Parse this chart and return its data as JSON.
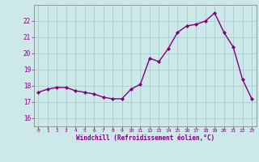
{
  "x": [
    0,
    1,
    2,
    3,
    4,
    5,
    6,
    7,
    8,
    9,
    10,
    11,
    12,
    13,
    14,
    15,
    16,
    17,
    18,
    19,
    20,
    21,
    22,
    23
  ],
  "y": [
    17.6,
    17.8,
    17.9,
    17.9,
    17.7,
    17.6,
    17.5,
    17.3,
    17.2,
    17.2,
    17.8,
    18.1,
    19.7,
    19.5,
    20.3,
    21.3,
    21.7,
    21.8,
    22.0,
    22.5,
    21.3,
    20.4,
    18.4,
    17.2
  ],
  "line_color": "#800080",
  "marker": "D",
  "marker_size": 2.0,
  "bg_color": "#cce8e8",
  "grid_color": "#aacccc",
  "xlabel": "Windchill (Refroidissement éolien,°C)",
  "xlabel_color": "#800080",
  "tick_color": "#800080",
  "spine_color": "#888888",
  "ylim": [
    15.5,
    23.0
  ],
  "xlim": [
    -0.5,
    23.5
  ],
  "yticks": [
    16,
    17,
    18,
    19,
    20,
    21,
    22
  ],
  "xticks": [
    0,
    1,
    2,
    3,
    4,
    5,
    6,
    7,
    8,
    9,
    10,
    11,
    12,
    13,
    14,
    15,
    16,
    17,
    18,
    19,
    20,
    21,
    22,
    23
  ],
  "linewidth": 1.0,
  "figsize": [
    3.2,
    2.0
  ],
  "dpi": 100
}
